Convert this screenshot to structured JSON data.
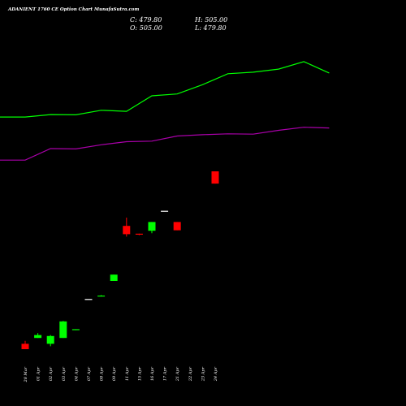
{
  "header": {
    "title": "ADANIENT 1760  CE Option Chart MunafaSutra.com",
    "close_label": "C: 479.80",
    "high_label": "H: 505.00",
    "open_label": "O: 505.00",
    "low_label": "L: 479.80"
  },
  "colors": {
    "background": "#000000",
    "up": "#00ff00",
    "down": "#ff0000",
    "doji": "#ffffff",
    "upper_line": "#00ff00",
    "lower_line": "#aa00aa",
    "text": "#ffffff"
  },
  "chart_data": {
    "type": "candlestick",
    "categories": [
      "28 Mar",
      "01 Apr",
      "02 Apr",
      "03 Apr",
      "04 Apr",
      "07 Apr",
      "08 Apr",
      "09 Apr",
      "11 Apr",
      "15 Apr",
      "16 Apr",
      "17 Apr",
      "21 Apr",
      "22 Apr",
      "23 Apr",
      "24 Apr"
    ],
    "price_range": [
      80,
      600
    ],
    "candles": [
      {
        "open": 151,
        "high": 157,
        "low": 140,
        "close": 140
      },
      {
        "open": 163,
        "high": 173,
        "low": 163,
        "close": 169
      },
      {
        "open": 151,
        "high": 169,
        "low": 146,
        "close": 167
      },
      {
        "open": 163,
        "high": 198,
        "low": 163,
        "close": 197
      },
      {
        "open": 179,
        "high": 181,
        "low": 179,
        "close": 181
      },
      {
        "open": 243,
        "high": 243,
        "low": 243,
        "close": 243
      },
      {
        "open": 248,
        "high": 251,
        "low": 248,
        "close": 250
      },
      {
        "open": 280,
        "high": 293,
        "low": 280,
        "close": 293
      },
      {
        "open": 393,
        "high": 410,
        "low": 371,
        "close": 376
      },
      {
        "open": 377,
        "high": 377,
        "low": 374,
        "close": 376
      },
      {
        "open": 383,
        "high": 401,
        "low": 378,
        "close": 401
      },
      {
        "open": 424,
        "high": 424,
        "low": 424,
        "close": 424
      },
      {
        "open": 401,
        "high": 401,
        "low": 384,
        "close": 384
      },
      {
        "open": null,
        "high": null,
        "low": null,
        "close": null
      },
      {
        "open": null,
        "high": null,
        "low": null,
        "close": null
      },
      {
        "open": 505,
        "high": 505,
        "low": 479.8,
        "close": 479.8
      }
    ],
    "upper_band": [
      866,
      866,
      883,
      881,
      912,
      905,
      1011,
      1024,
      1087,
      1162,
      1173,
      1194,
      1245,
      1167
    ],
    "lower_band": [
      571,
      571,
      650,
      648,
      676,
      697,
      701,
      736,
      745,
      751,
      749,
      775,
      796,
      791
    ]
  }
}
